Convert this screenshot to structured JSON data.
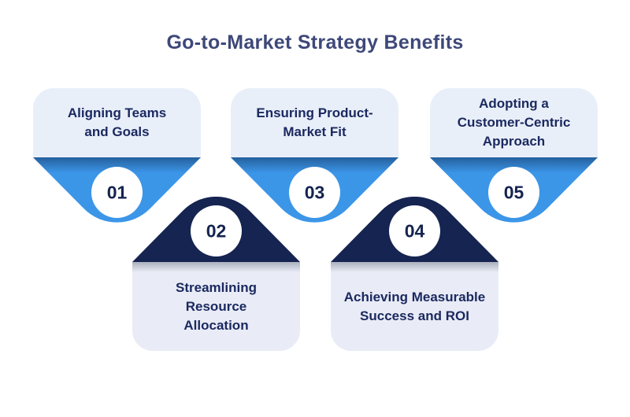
{
  "title": "Go-to-Market Strategy Benefits",
  "items": [
    {
      "number": "01",
      "label": "Aligning Teams and Goals",
      "lines": [
        "Aligning Teams",
        "and Goals"
      ],
      "pointer": "down"
    },
    {
      "number": "02",
      "label": "Streamlining Resource Allocation",
      "lines": [
        "Streamlining",
        "Resource",
        "Allocation"
      ],
      "pointer": "up"
    },
    {
      "number": "03",
      "label": "Ensuring Product-Market Fit",
      "lines": [
        "Ensuring Product-",
        "Market Fit"
      ],
      "pointer": "down"
    },
    {
      "number": "04",
      "label": "Achieving Measurable Success and ROI",
      "lines": [
        "Achieving Measurable",
        "Success and ROI"
      ],
      "pointer": "up"
    },
    {
      "number": "05",
      "label": "Adopting a Customer-Centric Approach",
      "lines": [
        "Adopting a",
        "Customer-Centric",
        "Approach"
      ],
      "pointer": "down"
    }
  ],
  "colors": {
    "background": "#ffffff",
    "title": "#3e4879",
    "text": "#1b2960",
    "blue": "#3c96e8",
    "navy": "#152450",
    "top_card_bg": "#e9eff9",
    "bottom_card_bg": "#e9ecf6",
    "circle_bg": "#ffffff"
  }
}
